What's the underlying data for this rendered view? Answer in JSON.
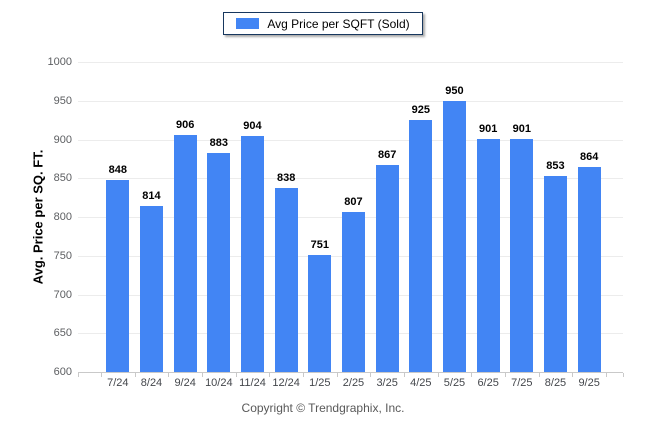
{
  "legend": {
    "label": "Avg Price per SQFT (Sold)"
  },
  "footer": {
    "copyright": "Copyright © Trendgraphix, Inc."
  },
  "colors": {
    "bar": "#4285f4",
    "gridline": "#ececec",
    "axis_line": "#c9c9c9",
    "y_tick_text": "#5c5e61",
    "x_tick_text": "#44474c",
    "value_label": "#000000",
    "legend_border": "#17375e",
    "footer_text": "#595959"
  },
  "chart_data": {
    "type": "bar",
    "title": "Avg Price per SQFT (Sold)",
    "categories": [
      "7/24",
      "8/24",
      "9/24",
      "10/24",
      "11/24",
      "12/24",
      "1/25",
      "2/25",
      "3/25",
      "4/25",
      "5/25",
      "6/25",
      "7/25",
      "8/25",
      "9/25"
    ],
    "values": [
      848,
      814,
      906,
      883,
      904,
      838,
      751,
      807,
      867,
      925,
      950,
      901,
      901,
      853,
      864
    ],
    "xlabel": "",
    "ylabel": "Avg. Price per SQ. FT.",
    "ylim": [
      600,
      1000
    ],
    "yticks": [
      600,
      650,
      700,
      750,
      800,
      850,
      900,
      950,
      1000
    ],
    "grid": "horizontal",
    "legend_position": "top",
    "value_labels": true
  }
}
